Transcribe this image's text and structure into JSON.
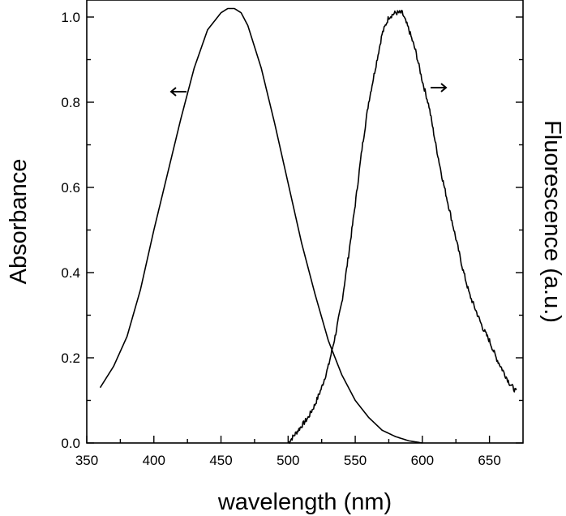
{
  "chart_data": {
    "type": "line",
    "xlabel": "wavelength (nm)",
    "ylabel": "Absorbance",
    "y2label": "Fluorescence (a.u.)",
    "xlim": [
      350,
      675
    ],
    "ylim": [
      0.0,
      1.04
    ],
    "xticks": [
      350,
      400,
      450,
      500,
      550,
      600,
      650
    ],
    "yticks": [
      0.0,
      0.2,
      0.4,
      0.6,
      0.8,
      1.0
    ],
    "ytick_labels": [
      "0.0",
      "0.2",
      "0.4",
      "0.6",
      "0.8",
      "1.0"
    ],
    "grid": false,
    "series": [
      {
        "axis": "left",
        "arrow": "left",
        "x": [
          360,
          370,
          380,
          390,
          400,
          410,
          420,
          430,
          440,
          450,
          455,
          460,
          465,
          470,
          480,
          490,
          500,
          510,
          520,
          530,
          540,
          550,
          560,
          570,
          580,
          590,
          600
        ],
        "y": [
          0.13,
          0.18,
          0.25,
          0.36,
          0.5,
          0.63,
          0.76,
          0.88,
          0.97,
          1.01,
          1.02,
          1.02,
          1.01,
          0.98,
          0.88,
          0.75,
          0.61,
          0.47,
          0.35,
          0.24,
          0.16,
          0.1,
          0.06,
          0.03,
          0.015,
          0.005,
          0.0
        ]
      },
      {
        "axis": "right",
        "arrow": "right",
        "x": [
          500,
          505,
          510,
          515,
          520,
          525,
          530,
          535,
          540,
          545,
          550,
          555,
          560,
          565,
          570,
          575,
          580,
          585,
          590,
          595,
          600,
          605,
          610,
          615,
          620,
          625,
          630,
          635,
          640,
          645,
          650,
          655,
          660,
          665,
          670
        ],
        "y": [
          0.0,
          0.02,
          0.04,
          0.06,
          0.09,
          0.13,
          0.18,
          0.25,
          0.33,
          0.44,
          0.56,
          0.69,
          0.8,
          0.88,
          0.96,
          1.0,
          1.01,
          1.01,
          0.97,
          0.92,
          0.85,
          0.79,
          0.7,
          0.62,
          0.55,
          0.48,
          0.41,
          0.35,
          0.31,
          0.27,
          0.24,
          0.2,
          0.17,
          0.14,
          0.12
        ]
      }
    ]
  }
}
